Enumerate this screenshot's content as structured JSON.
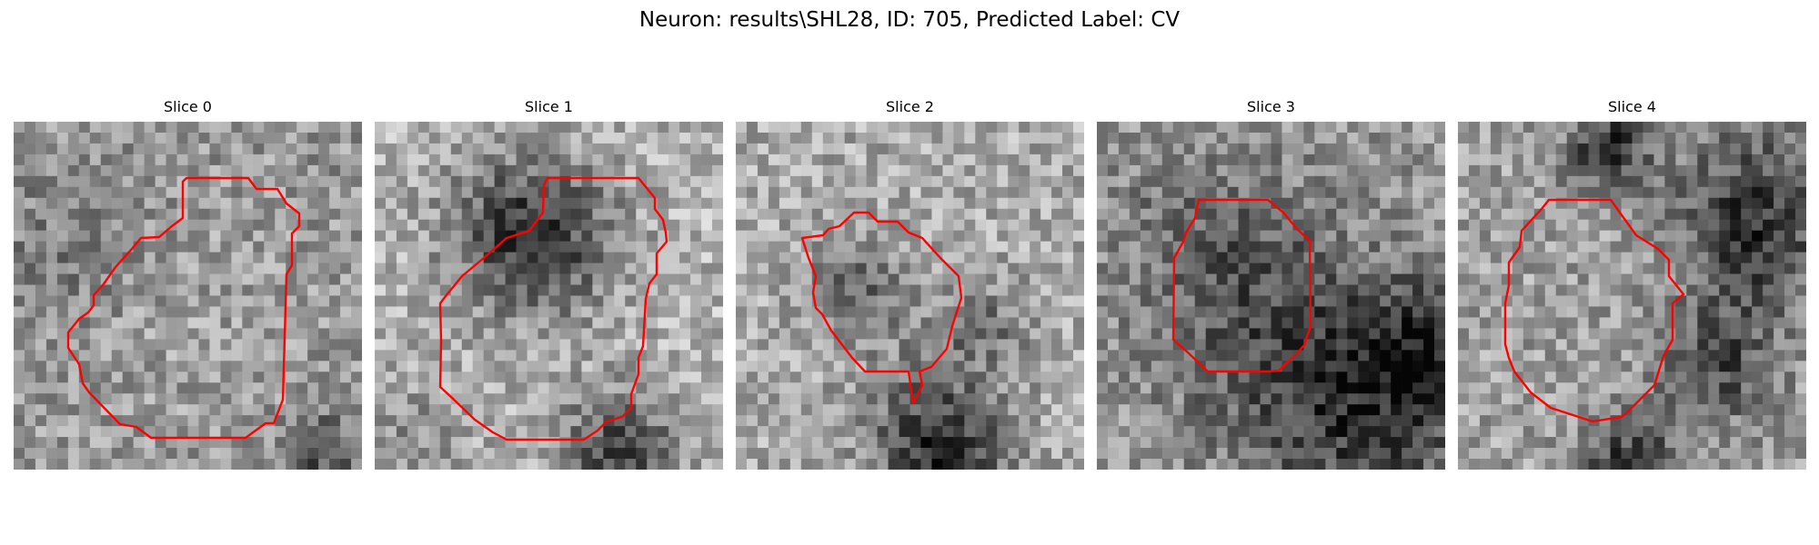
{
  "figure": {
    "title": "Neuron: results\\SHL28, ID: 705, Predicted Label: CV"
  },
  "panels": [
    {
      "title": "Slice 0",
      "contour_color": "#ff0000"
    },
    {
      "title": "Slice 1",
      "contour_color": "#ff0000"
    },
    {
      "title": "Slice 2",
      "contour_color": "#ff0000"
    },
    {
      "title": "Slice 3",
      "contour_color": "#ff0000"
    },
    {
      "title": "Slice 4",
      "contour_color": "#ff0000"
    }
  ]
}
